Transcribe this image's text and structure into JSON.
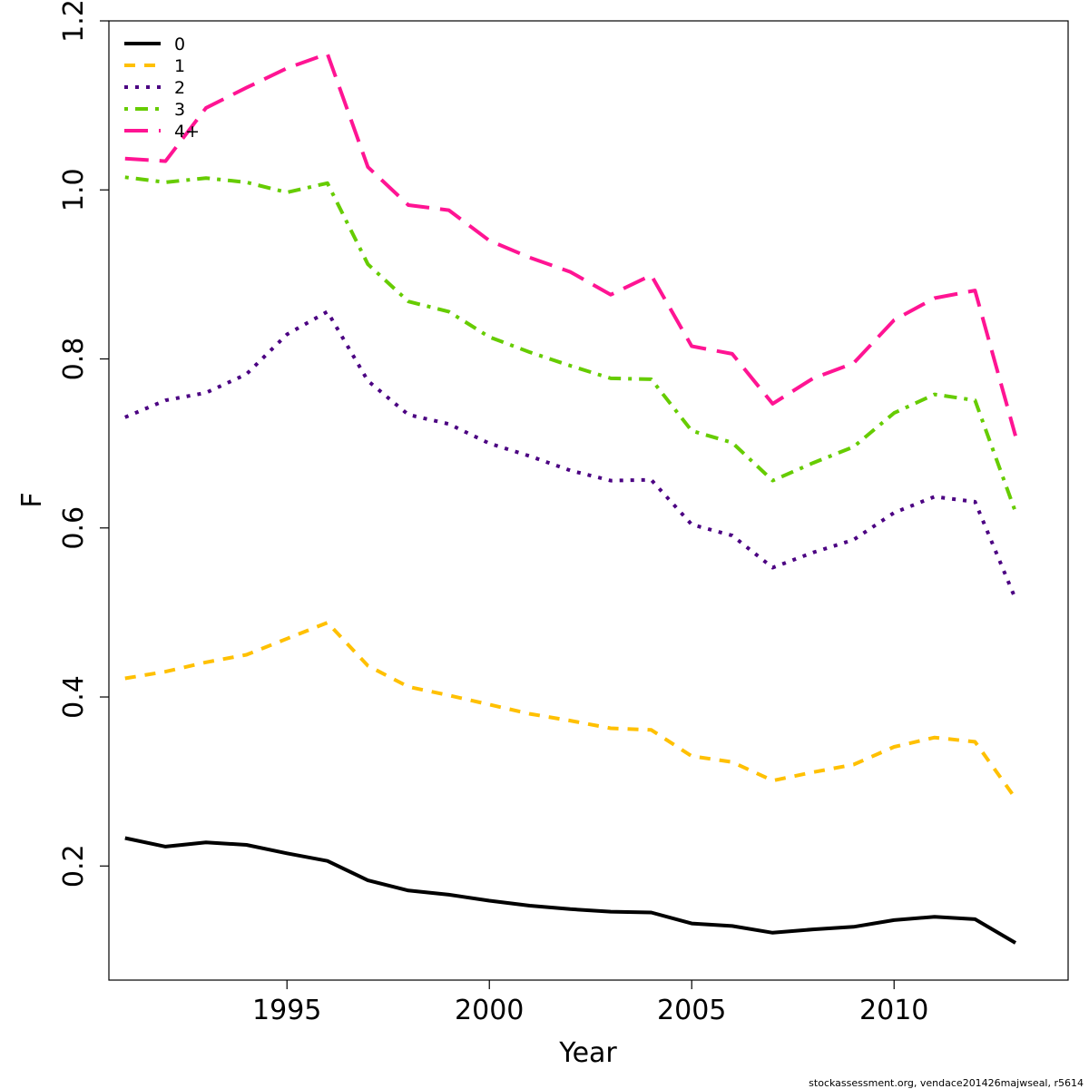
{
  "chart_data": {
    "type": "line",
    "xlabel": "Year",
    "ylabel": "F",
    "xlim": [
      1990.6,
      2014.3
    ],
    "ylim": [
      0.065,
      1.2
    ],
    "x_ticks": [
      1995,
      2000,
      2005,
      2010
    ],
    "x_tick_labels": [
      "1995",
      "2000",
      "2005",
      "2010"
    ],
    "y_ticks": [
      0.2,
      0.4,
      0.6,
      0.8,
      1.0,
      1.2
    ],
    "y_tick_labels": [
      "0.2",
      "0.4",
      "0.6",
      "0.8",
      "1.0",
      "1.2"
    ],
    "grid": false,
    "legend_position": "top-left",
    "x": [
      1991,
      1992,
      1993,
      1994,
      1995,
      1996,
      1997,
      1998,
      1999,
      2000,
      2001,
      2002,
      2003,
      2004,
      2005,
      2006,
      2007,
      2008,
      2009,
      2010,
      2011,
      2012,
      2013
    ],
    "series": [
      {
        "name": "0",
        "color": "#000000",
        "dash": "solid",
        "values": [
          0.233,
          0.223,
          0.228,
          0.225,
          0.215,
          0.206,
          0.183,
          0.171,
          0.166,
          0.159,
          0.153,
          0.149,
          0.146,
          0.145,
          0.132,
          0.129,
          0.121,
          0.125,
          0.128,
          0.136,
          0.14,
          0.137,
          0.109
        ]
      },
      {
        "name": "1",
        "color": "#FFC000",
        "dash": "dashed",
        "values": [
          0.422,
          0.43,
          0.441,
          0.45,
          0.469,
          0.488,
          0.437,
          0.412,
          0.402,
          0.391,
          0.38,
          0.372,
          0.363,
          0.361,
          0.33,
          0.323,
          0.301,
          0.311,
          0.32,
          0.341,
          0.352,
          0.347,
          0.28
        ]
      },
      {
        "name": "2",
        "color": "#4B0082",
        "dash": "dotted",
        "values": [
          0.731,
          0.751,
          0.76,
          0.782,
          0.829,
          0.856,
          0.774,
          0.734,
          0.723,
          0.7,
          0.685,
          0.668,
          0.656,
          0.657,
          0.604,
          0.591,
          0.553,
          0.571,
          0.586,
          0.618,
          0.637,
          0.631,
          0.516
        ]
      },
      {
        "name": "3",
        "color": "#66CC00",
        "dash": "dotdash",
        "values": [
          1.015,
          1.009,
          1.014,
          1.009,
          0.997,
          1.008,
          0.912,
          0.868,
          0.856,
          0.826,
          0.808,
          0.792,
          0.777,
          0.776,
          0.715,
          0.701,
          0.656,
          0.677,
          0.696,
          0.736,
          0.758,
          0.751,
          0.619
        ]
      },
      {
        "name": "4+",
        "color": "#FF1493",
        "dash": "longdash",
        "values": [
          1.037,
          1.034,
          1.097,
          1.121,
          1.144,
          1.161,
          1.027,
          0.982,
          0.976,
          0.94,
          0.92,
          0.903,
          0.876,
          0.899,
          0.815,
          0.806,
          0.747,
          0.777,
          0.795,
          0.846,
          0.872,
          0.881,
          0.709
        ]
      }
    ]
  },
  "footer": {
    "credit": "stockassessment.org, vendace201426majwseal, r5614"
  }
}
